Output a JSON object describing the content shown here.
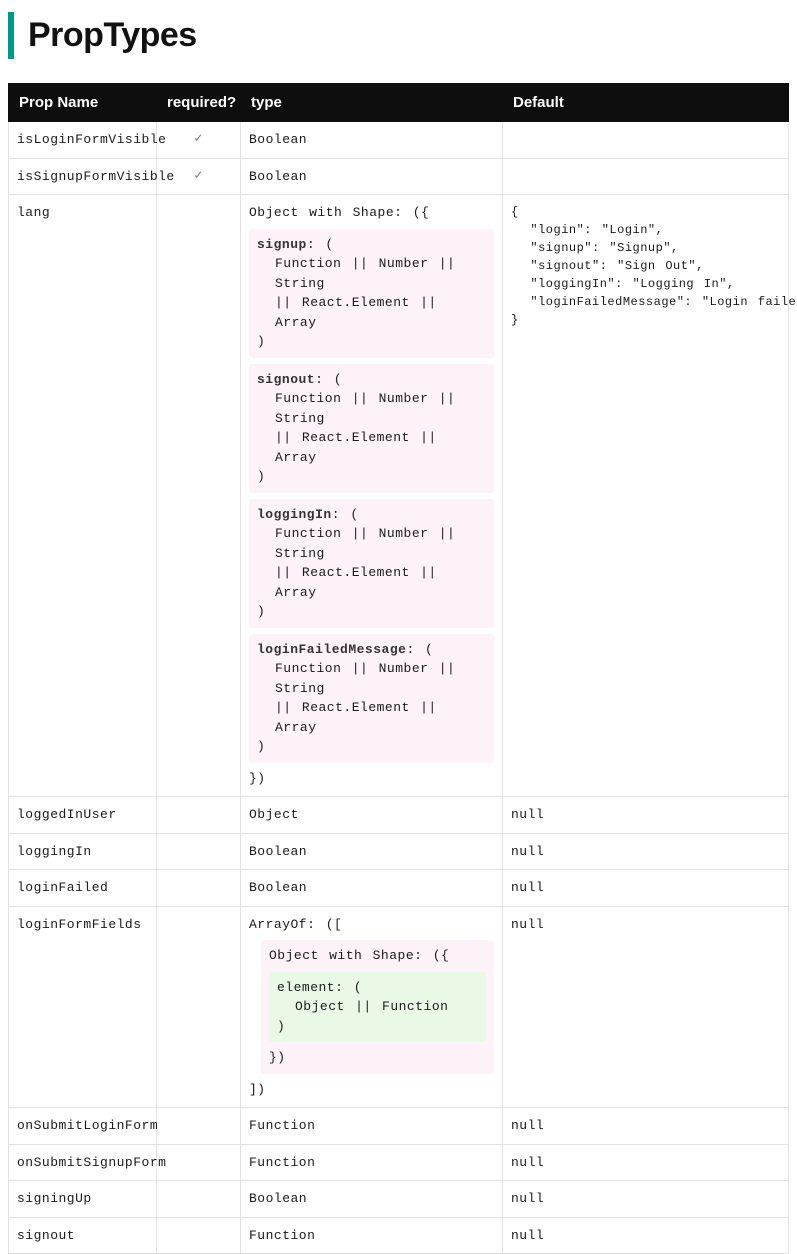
{
  "title": "PropTypes",
  "colors": {
    "accent_border": "#009688",
    "header_bg": "#0e0e0e",
    "header_fg": "#ffffff",
    "border": "#e2e2e2",
    "shape_bg_pink": "#fdf2f7",
    "shape_bg_green": "#eaf8e6",
    "text": "#1a1a1a"
  },
  "columns": {
    "name": "Prop Name",
    "required": "required?",
    "type": "type",
    "default": "Default"
  },
  "checkmark": "✓",
  "shape_union_line1": "Function || Number || String",
  "shape_union_line2": "|| React.Element || Array",
  "element_union": "Object || Function",
  "lang_shape_open": "Object with Shape: ({",
  "lang_shape_close": "})",
  "arrayof_open": "ArrayOf: ([",
  "arrayof_close": "])",
  "inner_shape_open": "Object with Shape: ({",
  "inner_shape_close": "})",
  "shape_keys": {
    "signup": "signup",
    "signout": "signout",
    "loggingIn": "loggingIn",
    "loginFailedMessage": "loginFailedMessage",
    "element": "element"
  },
  "rows": {
    "isLoginFormVisible": {
      "name": "isLoginFormVisible",
      "type": "Boolean",
      "default": ""
    },
    "isSignupFormVisible": {
      "name": "isSignupFormVisible",
      "type": "Boolean",
      "default": ""
    },
    "lang": {
      "name": "lang",
      "default": "{\n  \"login\": \"Login\",\n  \"signup\": \"Signup\",\n  \"signout\": \"Sign Out\",\n  \"loggingIn\": \"Logging In\",\n  \"loginFailedMessage\": \"Login failed\"\n}"
    },
    "loggedInUser": {
      "name": "loggedInUser",
      "type": "Object",
      "default": "null"
    },
    "loggingIn": {
      "name": "loggingIn",
      "type": "Boolean",
      "default": "null"
    },
    "loginFailed": {
      "name": "loginFailed",
      "type": "Boolean",
      "default": "null"
    },
    "loginFormFields": {
      "name": "loginFormFields",
      "default": "null"
    },
    "onSubmitLoginForm": {
      "name": "onSubmitLoginForm",
      "type": "Function",
      "default": "null"
    },
    "onSubmitSignupForm": {
      "name": "onSubmitSignupForm",
      "type": "Function",
      "default": "null"
    },
    "signingUp": {
      "name": "signingUp",
      "type": "Boolean",
      "default": "null"
    },
    "signout": {
      "name": "signout",
      "type": "Function",
      "default": "null"
    }
  }
}
